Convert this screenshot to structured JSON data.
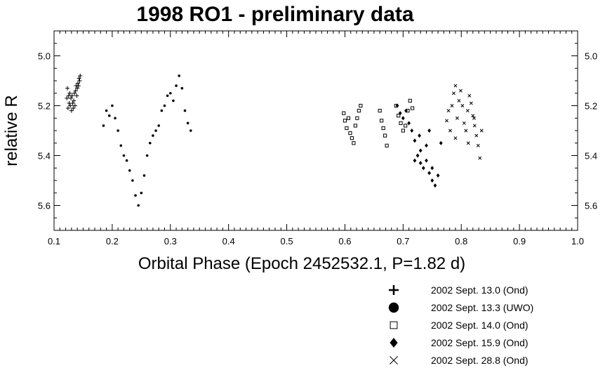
{
  "chart_data": {
    "type": "scatter",
    "title": "1998 RO1 - preliminary data",
    "xlabel": "Orbital Phase (Epoch 2452532.1, P=1.82 d)",
    "ylabel": "relative R",
    "xlim": [
      0.1,
      1.0
    ],
    "ylim": [
      5.7,
      4.9
    ],
    "y_inverted": true,
    "x_ticks": [
      "0.1",
      "0.2",
      "0.3",
      "0.4",
      "0.5",
      "0.6",
      "0.7",
      "0.8",
      "0.9",
      "1.0"
    ],
    "y_ticks": [
      "5.0",
      "5.2",
      "5.4",
      "5.6"
    ],
    "legend_position": "bottom-right",
    "series": [
      {
        "name": "2002 Sept. 13.0 (Ond)",
        "marker": "plus",
        "points": [
          [
            0.122,
            5.17
          ],
          [
            0.123,
            5.13
          ],
          [
            0.124,
            5.21
          ],
          [
            0.125,
            5.16
          ],
          [
            0.126,
            5.19
          ],
          [
            0.127,
            5.15
          ],
          [
            0.128,
            5.2
          ],
          [
            0.129,
            5.17
          ],
          [
            0.13,
            5.22
          ],
          [
            0.131,
            5.16
          ],
          [
            0.132,
            5.19
          ],
          [
            0.133,
            5.21
          ],
          [
            0.134,
            5.18
          ],
          [
            0.135,
            5.15
          ],
          [
            0.136,
            5.2
          ],
          [
            0.137,
            5.14
          ],
          [
            0.138,
            5.12
          ],
          [
            0.139,
            5.16
          ],
          [
            0.14,
            5.13
          ],
          [
            0.141,
            5.11
          ],
          [
            0.142,
            5.12
          ],
          [
            0.143,
            5.09
          ],
          [
            0.144,
            5.1
          ],
          [
            0.145,
            5.08
          ]
        ]
      },
      {
        "name": "2002 Sept. 13.3 (UWO)",
        "marker": "circle",
        "points": [
          [
            0.185,
            5.28
          ],
          [
            0.19,
            5.22
          ],
          [
            0.195,
            5.24
          ],
          [
            0.2,
            5.2
          ],
          [
            0.205,
            5.25
          ],
          [
            0.21,
            5.3
          ],
          [
            0.215,
            5.36
          ],
          [
            0.22,
            5.4
          ],
          [
            0.225,
            5.42
          ],
          [
            0.23,
            5.46
          ],
          [
            0.235,
            5.5
          ],
          [
            0.24,
            5.56
          ],
          [
            0.245,
            5.6
          ],
          [
            0.25,
            5.55
          ],
          [
            0.255,
            5.48
          ],
          [
            0.26,
            5.4
          ],
          [
            0.265,
            5.35
          ],
          [
            0.27,
            5.32
          ],
          [
            0.275,
            5.3
          ],
          [
            0.28,
            5.28
          ],
          [
            0.285,
            5.22
          ],
          [
            0.29,
            5.2
          ],
          [
            0.295,
            5.16
          ],
          [
            0.3,
            5.15
          ],
          [
            0.305,
            5.18
          ],
          [
            0.31,
            5.12
          ],
          [
            0.315,
            5.08
          ],
          [
            0.32,
            5.13
          ],
          [
            0.325,
            5.22
          ],
          [
            0.33,
            5.27
          ],
          [
            0.335,
            5.3
          ]
        ]
      },
      {
        "name": "2002 Sept. 14.0 (Ond)",
        "marker": "square",
        "points": [
          [
            0.598,
            5.23
          ],
          [
            0.6,
            5.26
          ],
          [
            0.603,
            5.29
          ],
          [
            0.606,
            5.25
          ],
          [
            0.609,
            5.31
          ],
          [
            0.612,
            5.33
          ],
          [
            0.615,
            5.35
          ],
          [
            0.618,
            5.28
          ],
          [
            0.621,
            5.25
          ],
          [
            0.624,
            5.22
          ],
          [
            0.627,
            5.2
          ],
          [
            0.66,
            5.22
          ],
          [
            0.663,
            5.26
          ],
          [
            0.666,
            5.29
          ],
          [
            0.669,
            5.32
          ],
          [
            0.672,
            5.36
          ],
          [
            0.688,
            5.2
          ],
          [
            0.692,
            5.24
          ],
          [
            0.696,
            5.27
          ],
          [
            0.7,
            5.3
          ],
          [
            0.704,
            5.28
          ],
          [
            0.708,
            5.22
          ],
          [
            0.712,
            5.18
          ],
          [
            0.716,
            5.21
          ]
        ]
      },
      {
        "name": "2002 Sept. 15.9 (Ond)",
        "marker": "diamond",
        "points": [
          [
            0.69,
            5.2
          ],
          [
            0.695,
            5.23
          ],
          [
            0.7,
            5.25
          ],
          [
            0.705,
            5.22
          ],
          [
            0.71,
            5.27
          ],
          [
            0.715,
            5.3
          ],
          [
            0.72,
            5.34
          ],
          [
            0.725,
            5.4
          ],
          [
            0.73,
            5.43
          ],
          [
            0.735,
            5.45
          ],
          [
            0.74,
            5.42
          ],
          [
            0.745,
            5.47
          ],
          [
            0.75,
            5.5
          ],
          [
            0.755,
            5.52
          ],
          [
            0.76,
            5.48
          ],
          [
            0.765,
            5.35
          ],
          [
            0.72,
            5.42
          ],
          [
            0.73,
            5.38
          ],
          [
            0.74,
            5.36
          ],
          [
            0.75,
            5.45
          ],
          [
            0.728,
            5.32
          ],
          [
            0.745,
            5.3
          ]
        ]
      },
      {
        "name": "2002 Sept. 28.8 (Ond)",
        "marker": "cross",
        "points": [
          [
            0.775,
            5.26
          ],
          [
            0.778,
            5.22
          ],
          [
            0.781,
            5.3
          ],
          [
            0.784,
            5.2
          ],
          [
            0.787,
            5.15
          ],
          [
            0.79,
            5.12
          ],
          [
            0.793,
            5.25
          ],
          [
            0.796,
            5.18
          ],
          [
            0.799,
            5.14
          ],
          [
            0.802,
            5.2
          ],
          [
            0.805,
            5.27
          ],
          [
            0.808,
            5.3
          ],
          [
            0.811,
            5.22
          ],
          [
            0.814,
            5.16
          ],
          [
            0.817,
            5.19
          ],
          [
            0.82,
            5.24
          ],
          [
            0.823,
            5.28
          ],
          [
            0.826,
            5.32
          ],
          [
            0.829,
            5.36
          ],
          [
            0.832,
            5.41
          ],
          [
            0.835,
            5.3
          ],
          [
            0.79,
            5.33
          ],
          [
            0.812,
            5.35
          ],
          [
            0.822,
            5.25
          ]
        ]
      }
    ]
  }
}
